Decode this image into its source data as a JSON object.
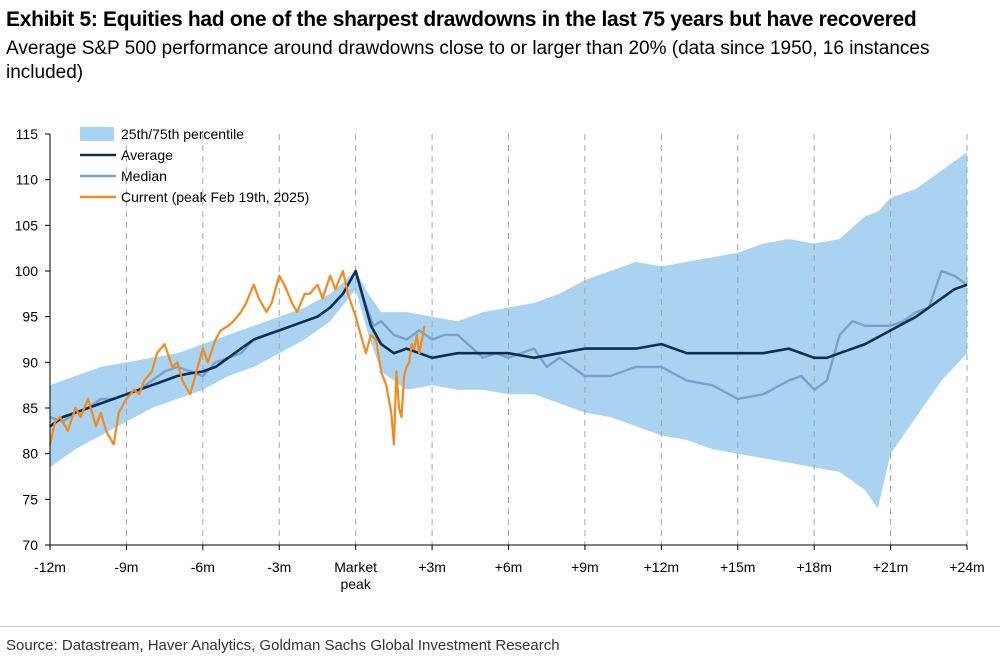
{
  "title": "Exhibit 5: Equities had one of the sharpest drawdowns in the last 75 years but have recovered",
  "subtitle": "Average S&P 500 performance around drawdowns close to or larger than 20% (data since 1950, 16 instances included)",
  "source": "Source: Datastream, Haver Analytics, Goldman Sachs Global Investment Research",
  "colors": {
    "band": "#a9d3f1",
    "average": "#0d2d55",
    "median": "#7c9fcb",
    "current": "#f28a1e",
    "gridline": "#a6a6a6"
  },
  "chart_data": {
    "type": "line",
    "x_unit": "months relative to market peak",
    "xlim": [
      -12,
      24
    ],
    "ylim": [
      70,
      115
    ],
    "y_ticks": [
      "70",
      "75",
      "80",
      "85",
      "90",
      "95",
      "100",
      "105",
      "110",
      "115"
    ],
    "x_ticks": [
      {
        "x": -12,
        "label": "-12m"
      },
      {
        "x": -9,
        "label": "-9m"
      },
      {
        "x": -6,
        "label": "-6m"
      },
      {
        "x": -3,
        "label": "-3m"
      },
      {
        "x": 0,
        "label": "Market",
        "label2": "peak"
      },
      {
        "x": 3,
        "label": "+3m"
      },
      {
        "x": 6,
        "label": "+6m"
      },
      {
        "x": 9,
        "label": "+9m"
      },
      {
        "x": 12,
        "label": "+12m"
      },
      {
        "x": 15,
        "label": "+15m"
      },
      {
        "x": 18,
        "label": "+18m"
      },
      {
        "x": 21,
        "label": "+21m"
      },
      {
        "x": 24,
        "label": "+24m"
      }
    ],
    "vertical_gridlines": [
      -9,
      -6,
      -3,
      0,
      3,
      6,
      9,
      12,
      15,
      18,
      21,
      24
    ],
    "legend": {
      "position": "top-left",
      "entries": [
        "25th/75th percentile",
        "Average",
        "Median",
        "Current (peak Feb 19th, 2025)"
      ]
    },
    "series": [
      {
        "name": "25th/75th percentile",
        "kind": "band",
        "x": [
          -12,
          -11,
          -10,
          -9,
          -8,
          -7,
          -6,
          -5,
          -4,
          -3,
          -2,
          -1,
          0,
          0.5,
          1,
          2,
          3,
          4,
          5,
          6,
          7,
          8,
          9,
          10,
          11,
          12,
          13,
          14,
          15,
          16,
          17,
          18,
          19,
          20,
          20.5,
          21,
          22,
          23,
          24
        ],
        "lower": [
          78.5,
          80.5,
          82,
          83.5,
          85,
          86,
          87,
          88.5,
          89.5,
          91,
          92.5,
          94.5,
          98,
          93,
          89,
          87,
          87.5,
          87,
          87,
          86.5,
          86.5,
          85.5,
          84.5,
          84,
          83,
          82,
          81.5,
          80.5,
          80,
          79.5,
          79,
          78.5,
          78,
          76,
          74,
          80,
          84,
          88,
          91
        ],
        "upper": [
          87.5,
          88.5,
          89.5,
          90,
          90.5,
          91,
          92,
          93,
          94,
          95,
          96,
          97.5,
          100,
          97.5,
          95.5,
          95.5,
          95,
          94.5,
          95.5,
          96,
          96.5,
          97.5,
          99,
          100,
          101,
          100.5,
          101,
          101.5,
          102,
          103,
          103.5,
          103,
          103.5,
          106,
          106.5,
          108,
          109,
          111,
          113
        ]
      },
      {
        "name": "Average",
        "x": [
          -12,
          -11.5,
          -11,
          -10.5,
          -10,
          -9.5,
          -9,
          -8.5,
          -8,
          -7.5,
          -7,
          -6.5,
          -6,
          -5.5,
          -5,
          -4.5,
          -4,
          -3.5,
          -3,
          -2.5,
          -2,
          -1.5,
          -1,
          -0.5,
          0,
          0.3,
          0.6,
          1,
          1.5,
          2,
          2.5,
          3,
          4,
          5,
          6,
          7,
          8,
          9,
          10,
          11,
          12,
          13,
          14,
          15,
          16,
          17,
          18,
          18.5,
          19,
          20,
          21,
          22,
          23,
          23.5,
          24
        ],
        "y": [
          83,
          84,
          84.5,
          85,
          85.5,
          86,
          86.5,
          87,
          87.5,
          88,
          88.5,
          88.8,
          89,
          89.5,
          90.5,
          91.5,
          92.5,
          93,
          93.5,
          94,
          94.5,
          95,
          96,
          97.5,
          100,
          97,
          94,
          92,
          91,
          91.5,
          91,
          90.5,
          91,
          91,
          91,
          90.5,
          91,
          91.5,
          91.5,
          91.5,
          92,
          91,
          91,
          91,
          91,
          91.5,
          90.5,
          90.5,
          91,
          92,
          93.5,
          95,
          97,
          98,
          98.5
        ]
      },
      {
        "name": "Median",
        "x": [
          -12,
          -11.5,
          -11,
          -10.5,
          -10,
          -9.5,
          -9,
          -8.5,
          -8,
          -7.5,
          -7,
          -6.5,
          -6,
          -5.5,
          -5,
          -4.5,
          -4,
          -3.5,
          -3,
          -2.5,
          -2,
          -1.5,
          -1,
          -0.5,
          0,
          0.3,
          0.7,
          1,
          1.5,
          2,
          2.5,
          3,
          3.5,
          4,
          5,
          5.5,
          6,
          7,
          7.5,
          8,
          9,
          10,
          11,
          12,
          13,
          14,
          15,
          16,
          17,
          17.5,
          18,
          18.5,
          19,
          19.5,
          20,
          20.5,
          21,
          21.5,
          22,
          22.5,
          23,
          23.5,
          24
        ],
        "y": [
          84,
          83.5,
          84.5,
          85,
          86,
          86,
          86.5,
          87,
          88,
          89,
          89.5,
          89,
          88.5,
          90,
          90.5,
          91,
          92.5,
          93,
          93.5,
          94,
          94.5,
          95,
          96,
          97.5,
          100,
          97,
          94,
          94.5,
          93,
          92.5,
          93.5,
          92.5,
          93,
          93,
          90.5,
          91,
          90.5,
          91.5,
          89.5,
          90.5,
          88.5,
          88.5,
          89.5,
          89.5,
          88,
          87.5,
          86,
          86.5,
          88,
          88.5,
          87,
          88,
          93,
          94.5,
          94,
          94,
          94,
          94.5,
          95.5,
          96,
          100,
          99.5,
          98.5
        ]
      },
      {
        "name": "Current (peak Feb 19th, 2025)",
        "x": [
          -12,
          -11.8,
          -11.6,
          -11.3,
          -11,
          -10.8,
          -10.5,
          -10.2,
          -10,
          -9.8,
          -9.5,
          -9.3,
          -9,
          -8.7,
          -8.5,
          -8.3,
          -8,
          -7.8,
          -7.5,
          -7.2,
          -7,
          -6.8,
          -6.5,
          -6.3,
          -6,
          -5.8,
          -5.5,
          -5.3,
          -5,
          -4.8,
          -4.5,
          -4.3,
          -4,
          -3.8,
          -3.5,
          -3.3,
          -3,
          -2.8,
          -2.5,
          -2.3,
          -2,
          -1.8,
          -1.5,
          -1.3,
          -1,
          -0.8,
          -0.5,
          -0.3,
          0,
          0.2,
          0.4,
          0.6,
          0.8,
          1,
          1.2,
          1.4,
          1.5,
          1.6,
          1.7,
          1.8,
          1.9,
          2,
          2.1,
          2.2,
          2.3,
          2.4,
          2.5,
          2.6,
          2.7
        ],
        "y": [
          81,
          83.5,
          84,
          82.5,
          85,
          84,
          86,
          83,
          84.5,
          82.5,
          81,
          84.5,
          86,
          87,
          86.5,
          88,
          89,
          91,
          92,
          89.5,
          90,
          88,
          86.5,
          88.5,
          91.5,
          90,
          92.5,
          93.5,
          94,
          94.5,
          95.5,
          96.5,
          98.5,
          97,
          95.5,
          96.5,
          99.5,
          98.5,
          96.5,
          95.5,
          97.5,
          97.5,
          98.5,
          97,
          99.5,
          98,
          100,
          97.5,
          95,
          93,
          91,
          93,
          92.5,
          89,
          87.5,
          84.5,
          81,
          89,
          85,
          84,
          88.5,
          89.5,
          90,
          92,
          91.5,
          93,
          91,
          92.5,
          94
        ]
      }
    ]
  }
}
